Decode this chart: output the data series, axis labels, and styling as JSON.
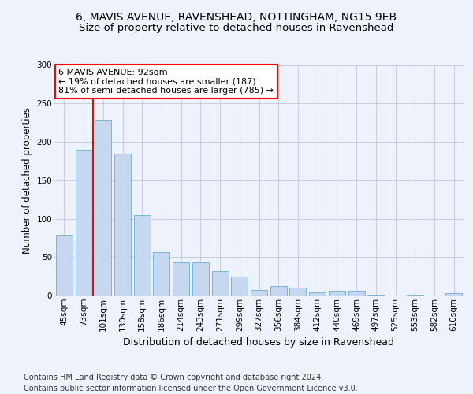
{
  "title1": "6, MAVIS AVENUE, RAVENSHEAD, NOTTINGHAM, NG15 9EB",
  "title2": "Size of property relative to detached houses in Ravenshead",
  "xlabel": "Distribution of detached houses by size in Ravenshead",
  "ylabel": "Number of detached properties",
  "categories": [
    "45sqm",
    "73sqm",
    "101sqm",
    "130sqm",
    "158sqm",
    "186sqm",
    "214sqm",
    "243sqm",
    "271sqm",
    "299sqm",
    "327sqm",
    "356sqm",
    "384sqm",
    "412sqm",
    "440sqm",
    "469sqm",
    "497sqm",
    "525sqm",
    "553sqm",
    "582sqm",
    "610sqm"
  ],
  "values": [
    79,
    190,
    229,
    185,
    105,
    56,
    43,
    43,
    32,
    25,
    7,
    12,
    10,
    4,
    6,
    6,
    1,
    0,
    1,
    0,
    3
  ],
  "bar_color": "#c5d8f0",
  "bar_edge_color": "#6aaed6",
  "redline_index": 2,
  "annotation_line1": "6 MAVIS AVENUE: 92sqm",
  "annotation_line2": "← 19% of detached houses are smaller (187)",
  "annotation_line3": "81% of semi-detached houses are larger (785) →",
  "annotation_box_color": "white",
  "annotation_box_edge": "red",
  "footer": "Contains HM Land Registry data © Crown copyright and database right 2024.\nContains public sector information licensed under the Open Government Licence v3.0.",
  "ylim": [
    0,
    300
  ],
  "yticks": [
    0,
    50,
    100,
    150,
    200,
    250,
    300
  ],
  "background_color": "#eef2fb",
  "grid_color": "#c8d0e0",
  "title1_fontsize": 10,
  "title2_fontsize": 9.5,
  "xlabel_fontsize": 9,
  "ylabel_fontsize": 8.5,
  "tick_fontsize": 7.5,
  "footer_fontsize": 7,
  "annot_fontsize": 8
}
